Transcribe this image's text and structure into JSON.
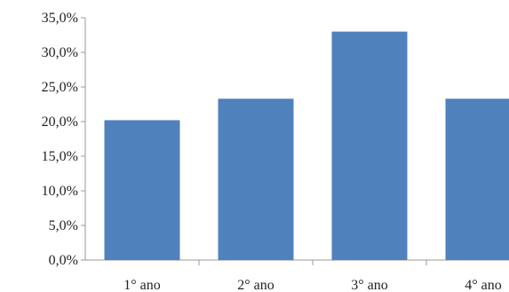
{
  "chart_data": {
    "type": "bar",
    "categories": [
      "1° ano",
      "2° ano",
      "3° ano",
      "4° ano"
    ],
    "values": [
      20.2,
      23.3,
      33.0,
      23.3
    ],
    "ylim": [
      0,
      35
    ],
    "yticks": [
      0,
      5,
      10,
      15,
      20,
      25,
      30,
      35
    ],
    "ytick_labels": [
      "0,0%",
      "5,0%",
      "10,0%",
      "15,0%",
      "20,0%",
      "25,0%",
      "30,0%",
      "35,0%"
    ],
    "grid": false,
    "legend": "none",
    "bar_color": "#4f81bd"
  }
}
